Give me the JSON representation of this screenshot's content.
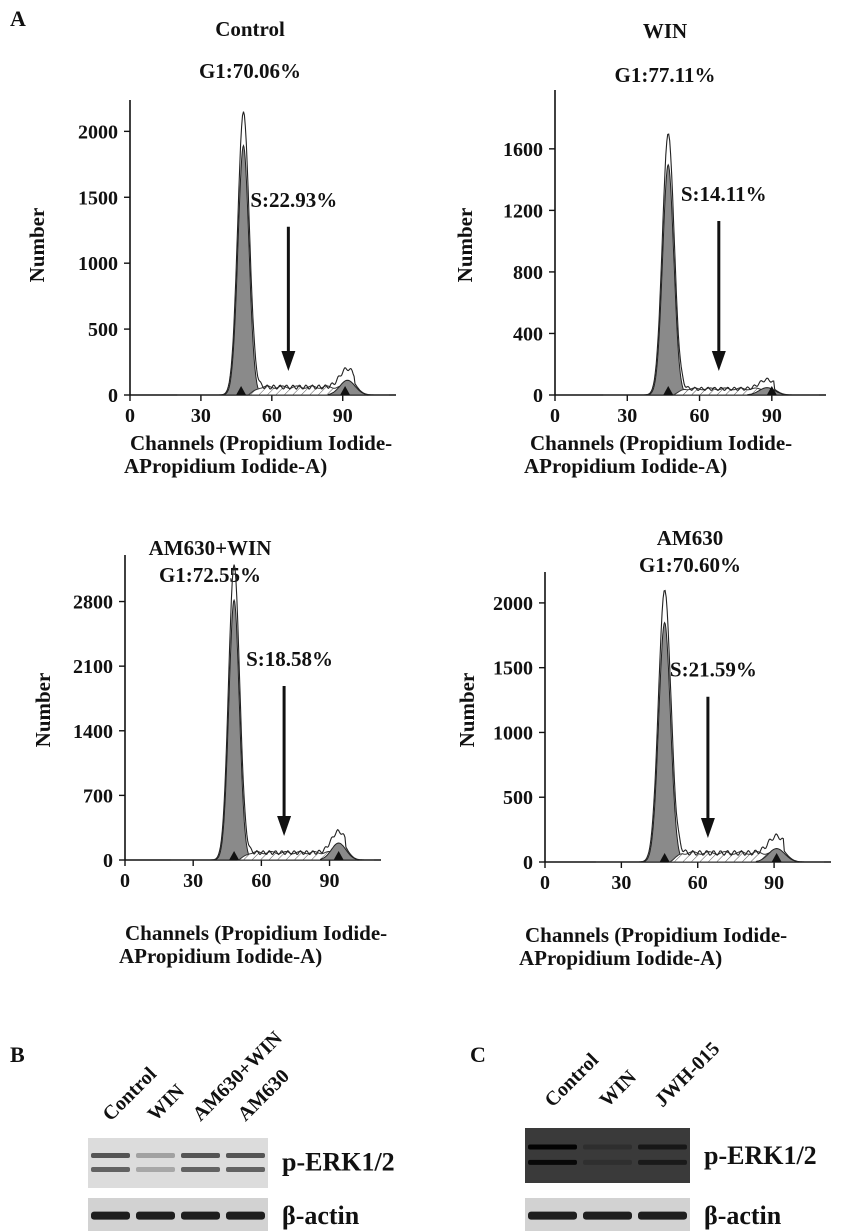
{
  "panel_letters": {
    "a": "A",
    "b": "B",
    "c": "C"
  },
  "chart_data": [
    {
      "type": "area",
      "title": "Control",
      "g1_label": "G1:70.06%",
      "s_label": "S:22.93%",
      "ylabel": "Number",
      "xlabel_line1": "Channels (Propidium Iodide-",
      "xlabel_line2": "APropidium Iodide-A)",
      "x_ticks": [
        0,
        30,
        60,
        90
      ],
      "y_ticks": [
        0,
        500,
        1000,
        1500,
        2000
      ],
      "xlim": [
        0,
        110
      ],
      "ylim": [
        0,
        2200
      ],
      "g1_peak": {
        "x": 48,
        "y": 2150
      },
      "g2_peak": {
        "x": 92,
        "y": 140
      },
      "s_level": 60,
      "arrow_x": 67,
      "markers_x": [
        47,
        91
      ]
    },
    {
      "type": "area",
      "title": "WIN",
      "g1_label": "G1:77.11%",
      "s_label": "S:14.11%",
      "ylabel": "Number",
      "xlabel_line1": "Channels (Propidium Iodide-",
      "xlabel_line2": "APropidium Iodide-A)",
      "x_ticks": [
        0,
        30,
        60,
        90
      ],
      "y_ticks": [
        0,
        400,
        800,
        1200,
        1600
      ],
      "xlim": [
        0,
        110
      ],
      "ylim": [
        0,
        1950
      ],
      "g1_peak": {
        "x": 47,
        "y": 1700
      },
      "g2_peak": {
        "x": 88,
        "y": 60
      },
      "s_level": 40,
      "arrow_x": 68,
      "markers_x": [
        47,
        90
      ]
    },
    {
      "type": "area",
      "title": "AM630+WIN",
      "g1_label": "G1:72.55%",
      "s_label": "S:18.58%",
      "ylabel": "Number",
      "xlabel_line1": "Channels (Propidium Iodide-",
      "xlabel_line2": "APropidium Iodide-A)",
      "x_ticks": [
        0,
        30,
        60,
        90
      ],
      "y_ticks": [
        0,
        700,
        1400,
        2100,
        2800
      ],
      "xlim": [
        0,
        110
      ],
      "ylim": [
        0,
        3250
      ],
      "g1_peak": {
        "x": 48,
        "y": 3200
      },
      "g2_peak": {
        "x": 94,
        "y": 230
      },
      "s_level": 80,
      "arrow_x": 70,
      "markers_x": [
        48,
        94
      ]
    },
    {
      "type": "area",
      "title": "AM630",
      "g1_label": "G1:70.60%",
      "s_label": "S:21.59%",
      "ylabel": "Number",
      "xlabel_line1": "Channels (Propidium Iodide-",
      "xlabel_line2": "APropidium Iodide-A)",
      "x_ticks": [
        0,
        30,
        60,
        90
      ],
      "y_ticks": [
        0,
        500,
        1000,
        1500,
        2000
      ],
      "xlim": [
        0,
        110
      ],
      "ylim": [
        0,
        2200
      ],
      "g1_peak": {
        "x": 47,
        "y": 2100
      },
      "g2_peak": {
        "x": 91,
        "y": 130
      },
      "s_level": 70,
      "arrow_x": 64,
      "markers_x": [
        47,
        91
      ]
    }
  ],
  "blots": {
    "b": {
      "lanes": [
        "Control",
        "WIN",
        "AM630+WIN",
        "AM630"
      ],
      "band_labels": [
        "p-ERK1/2",
        "β-actin"
      ],
      "perk_intensity": [
        0.8,
        0.35,
        0.8,
        0.8
      ],
      "actin_intensity": [
        0.95,
        0.95,
        0.95,
        0.95
      ]
    },
    "c": {
      "lanes": [
        "Control",
        "WIN",
        "JWH-015"
      ],
      "band_labels": [
        "p-ERK1/2",
        "β-actin"
      ],
      "perk_intensity": [
        0.95,
        0.2,
        0.6
      ],
      "actin_intensity": [
        0.95,
        0.95,
        0.95
      ]
    }
  }
}
